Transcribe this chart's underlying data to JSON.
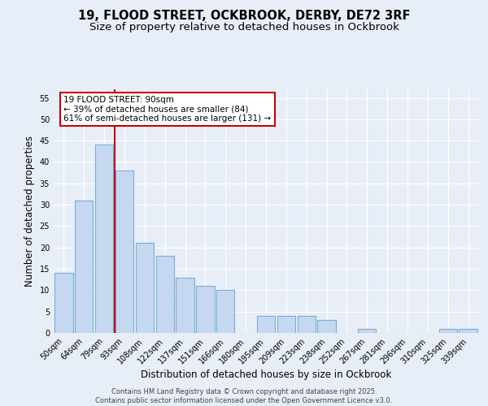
{
  "title1": "19, FLOOD STREET, OCKBROOK, DERBY, DE72 3RF",
  "title2": "Size of property relative to detached houses in Ockbrook",
  "xlabel": "Distribution of detached houses by size in Ockbrook",
  "ylabel": "Number of detached properties",
  "categories": [
    "50sqm",
    "64sqm",
    "79sqm",
    "93sqm",
    "108sqm",
    "122sqm",
    "137sqm",
    "151sqm",
    "166sqm",
    "180sqm",
    "195sqm",
    "209sqm",
    "223sqm",
    "238sqm",
    "252sqm",
    "267sqm",
    "281sqm",
    "296sqm",
    "310sqm",
    "325sqm",
    "339sqm"
  ],
  "values": [
    14,
    31,
    44,
    38,
    21,
    18,
    13,
    11,
    10,
    0,
    4,
    4,
    4,
    3,
    0,
    1,
    0,
    0,
    0,
    1,
    1
  ],
  "bar_color": "#c5d8f0",
  "bar_edge_color": "#7aadd4",
  "background_color": "#e8eef8",
  "grid_color": "#ffffff",
  "vline_x": 2.5,
  "vline_color": "#cc0000",
  "annotation_text": "19 FLOOD STREET: 90sqm\n← 39% of detached houses are smaller (84)\n61% of semi-detached houses are larger (131) →",
  "annotation_box_color": "#ffffff",
  "annotation_box_edge": "#cc0000",
  "ylim": [
    0,
    57
  ],
  "yticks": [
    0,
    5,
    10,
    15,
    20,
    25,
    30,
    35,
    40,
    45,
    50,
    55
  ],
  "footer": "Contains HM Land Registry data © Crown copyright and database right 2025.\nContains public sector information licensed under the Open Government Licence v3.0.",
  "title_fontsize": 10.5,
  "subtitle_fontsize": 9.5,
  "tick_fontsize": 7,
  "ylabel_fontsize": 8.5,
  "xlabel_fontsize": 8.5,
  "annotation_fontsize": 7.5,
  "footer_fontsize": 6
}
